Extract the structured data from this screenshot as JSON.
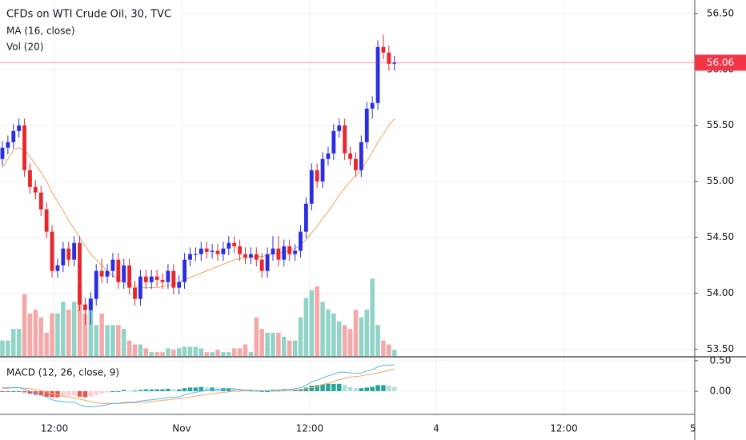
{
  "chart_data": [
    {
      "type": "candlestick",
      "title": "CFDs on WTI Crude Oil, 30, TVC",
      "categories": [
        null,
        null,
        null,
        null,
        null,
        null,
        null,
        null,
        null,
        null,
        null,
        null,
        null,
        null,
        null,
        null,
        null,
        null,
        null,
        null,
        null,
        null,
        null,
        null,
        null,
        null,
        null,
        null,
        null,
        null,
        null,
        null,
        null,
        null,
        null,
        null,
        null,
        null,
        null,
        null,
        null,
        null,
        null,
        null,
        null,
        null,
        null,
        null,
        null,
        null,
        null,
        null,
        null,
        null,
        null,
        null,
        null,
        null,
        null,
        null,
        null,
        null,
        null,
        null,
        null,
        null,
        null,
        null,
        null,
        null,
        null,
        null
      ],
      "open": [
        55.2,
        55.3,
        55.35,
        55.45,
        55.5,
        55.1,
        54.95,
        54.9,
        54.75,
        54.55,
        54.2,
        54.25,
        54.4,
        54.3,
        54.45,
        53.9,
        53.85,
        53.95,
        54.2,
        54.15,
        54.2,
        54.3,
        54.1,
        54.25,
        54.05,
        53.95,
        54.15,
        54.1,
        54.15,
        54.12,
        54.1,
        54.2,
        54.05,
        54.1,
        54.3,
        54.35,
        54.35,
        54.4,
        54.37,
        54.38,
        54.35,
        54.4,
        54.45,
        54.42,
        54.35,
        54.32,
        54.35,
        54.3,
        54.2,
        54.35,
        54.4,
        54.3,
        54.42,
        54.35,
        54.38,
        54.55,
        54.8,
        55.1,
        55.0,
        55.2,
        55.25,
        55.45,
        55.5,
        55.25,
        55.2,
        55.1,
        55.35,
        55.65,
        55.7,
        56.2,
        56.15,
        56.05
      ],
      "high": [
        55.36,
        55.41,
        55.51,
        55.56,
        55.56,
        55.16,
        55.01,
        54.96,
        54.81,
        54.61,
        54.31,
        54.46,
        54.46,
        54.51,
        54.51,
        53.96,
        54.01,
        54.26,
        54.31,
        54.26,
        54.36,
        54.36,
        54.31,
        54.31,
        54.11,
        54.21,
        54.21,
        54.21,
        54.21,
        54.18,
        54.26,
        54.26,
        54.16,
        54.36,
        54.41,
        54.41,
        54.46,
        54.46,
        54.44,
        54.44,
        54.46,
        54.51,
        54.51,
        54.48,
        54.41,
        54.41,
        54.41,
        54.36,
        54.41,
        54.51,
        54.51,
        54.48,
        54.48,
        54.44,
        54.61,
        54.86,
        55.16,
        55.16,
        55.26,
        55.31,
        55.51,
        55.56,
        55.56,
        55.31,
        55.26,
        55.41,
        55.71,
        55.76,
        56.26,
        56.31,
        56.21,
        56.12
      ],
      "low": [
        55.14,
        55.24,
        55.29,
        55.39,
        55.04,
        54.89,
        54.84,
        54.69,
        54.49,
        54.14,
        54.14,
        54.19,
        54.24,
        54.24,
        53.84,
        53.72,
        53.72,
        53.89,
        54.09,
        54.09,
        54.14,
        54.04,
        54.04,
        53.99,
        53.89,
        53.89,
        54.04,
        54.04,
        54.06,
        54.04,
        54.04,
        53.99,
        53.99,
        54.04,
        54.24,
        54.29,
        54.29,
        54.31,
        54.31,
        54.29,
        54.29,
        54.34,
        54.36,
        54.29,
        54.26,
        54.26,
        54.24,
        54.14,
        54.14,
        54.29,
        54.24,
        54.24,
        54.29,
        54.29,
        54.32,
        54.49,
        54.74,
        54.94,
        54.94,
        55.14,
        55.19,
        55.39,
        55.19,
        55.14,
        55.04,
        55.04,
        55.29,
        55.56,
        55.64,
        56.09,
        55.99,
        55.99
      ],
      "close": [
        55.3,
        55.35,
        55.45,
        55.5,
        55.1,
        54.95,
        54.9,
        54.75,
        54.55,
        54.2,
        54.25,
        54.4,
        54.3,
        54.45,
        53.9,
        53.85,
        53.95,
        54.2,
        54.15,
        54.2,
        54.3,
        54.1,
        54.25,
        54.05,
        53.95,
        54.15,
        54.1,
        54.15,
        54.12,
        54.1,
        54.2,
        54.05,
        54.1,
        54.3,
        54.35,
        54.35,
        54.4,
        54.37,
        54.38,
        54.35,
        54.4,
        54.45,
        54.42,
        54.35,
        54.32,
        54.35,
        54.3,
        54.2,
        54.35,
        54.4,
        54.3,
        54.42,
        54.35,
        54.38,
        54.55,
        54.8,
        55.1,
        55.0,
        55.2,
        55.25,
        55.45,
        55.5,
        55.25,
        55.2,
        55.1,
        55.35,
        55.65,
        55.7,
        56.2,
        56.15,
        56.05,
        56.06
      ],
      "up_color": "#2a2ee0",
      "down_color": "#e8262b",
      "series": [
        {
          "name": "MA (16, close)",
          "color": "#f4a261",
          "values": [
            55.12,
            55.2,
            55.28,
            55.3,
            55.28,
            55.22,
            55.15,
            55.08,
            55.0,
            54.9,
            54.82,
            54.74,
            54.65,
            54.58,
            54.5,
            54.42,
            54.35,
            54.3,
            54.25,
            54.2,
            54.16,
            54.12,
            54.1,
            54.08,
            54.06,
            54.05,
            54.05,
            54.05,
            54.05,
            54.06,
            54.07,
            54.08,
            54.1,
            54.12,
            54.14,
            54.16,
            54.18,
            54.2,
            54.22,
            54.24,
            54.26,
            54.28,
            54.3,
            54.31,
            54.32,
            54.32,
            54.33,
            54.33,
            54.34,
            54.35,
            54.36,
            54.37,
            54.38,
            54.4,
            54.43,
            54.48,
            54.54,
            54.6,
            54.67,
            54.73,
            54.8,
            54.88,
            54.94,
            55.0,
            55.05,
            55.1,
            55.18,
            55.26,
            55.35,
            55.42,
            55.5,
            55.56
          ]
        }
      ],
      "volume": {
        "name": "Vol (20)",
        "up_color": "#92d3c8",
        "down_color": "#f5a8a8",
        "ylim": [
          0,
          460
        ],
        "values": [
          20,
          20,
          35,
          35,
          80,
          55,
          60,
          50,
          30,
          55,
          55,
          70,
          60,
          70,
          90,
          55,
          75,
          40,
          55,
          40,
          40,
          40,
          35,
          20,
          15,
          15,
          10,
          5,
          5,
          5,
          10,
          8,
          10,
          12,
          12,
          12,
          10,
          5,
          5,
          8,
          5,
          5,
          10,
          10,
          15,
          5,
          50,
          35,
          30,
          30,
          30,
          25,
          20,
          20,
          50,
          75,
          85,
          90,
          70,
          60,
          55,
          45,
          40,
          35,
          60,
          50,
          60,
          100,
          40,
          20,
          15,
          8
        ]
      },
      "last_value": 56.06,
      "last_color": "#f23645",
      "ylim": [
        53.44,
        56.62
      ],
      "yticks": [
        {
          "value": 56.5,
          "label": "56.50"
        },
        {
          "value": 56.0,
          "label": "56.00"
        },
        {
          "value": 55.5,
          "label": "55.50"
        },
        {
          "value": 55.0,
          "label": "55.00"
        },
        {
          "value": 54.5,
          "label": "54.50"
        },
        {
          "value": 54.0,
          "label": "54.00"
        },
        {
          "value": 53.5,
          "label": "53.50"
        }
      ],
      "xlim": [
        -0.43,
        125.4
      ],
      "xticks": [
        {
          "value": 9.43,
          "label": "12:00"
        },
        {
          "value": 32.47,
          "label": "Nov"
        },
        {
          "value": 55.66,
          "label": "12:00"
        },
        {
          "value": 78.56,
          "label": "4"
        },
        {
          "value": 101.7,
          "label": "12:00"
        },
        {
          "value": 125.08,
          "label": "5"
        }
      ],
      "grid": true
    },
    {
      "type": "macd",
      "title": "MACD (12, 26, close, 9)",
      "macd": {
        "color": "#5ab4ee",
        "values": [
          0.05,
          0.05,
          0.06,
          0.06,
          0.03,
          0.0,
          -0.03,
          -0.06,
          -0.1,
          -0.14,
          -0.16,
          -0.17,
          -0.18,
          -0.18,
          -0.22,
          -0.25,
          -0.26,
          -0.25,
          -0.24,
          -0.22,
          -0.2,
          -0.2,
          -0.18,
          -0.18,
          -0.18,
          -0.16,
          -0.15,
          -0.14,
          -0.13,
          -0.12,
          -0.1,
          -0.1,
          -0.09,
          -0.06,
          -0.04,
          -0.02,
          0.0,
          0.01,
          0.02,
          0.02,
          0.03,
          0.04,
          0.04,
          0.03,
          0.02,
          0.02,
          0.01,
          0.0,
          0.01,
          0.02,
          0.02,
          0.03,
          0.03,
          0.04,
          0.06,
          0.1,
          0.15,
          0.18,
          0.22,
          0.25,
          0.28,
          0.31,
          0.31,
          0.3,
          0.29,
          0.3,
          0.33,
          0.35,
          0.4,
          0.42,
          0.43,
          0.43
        ]
      },
      "signal": {
        "color": "#f4a261",
        "values": [
          0.06,
          0.06,
          0.06,
          0.06,
          0.05,
          0.04,
          0.03,
          0.01,
          -0.01,
          -0.04,
          -0.06,
          -0.08,
          -0.1,
          -0.11,
          -0.13,
          -0.15,
          -0.17,
          -0.19,
          -0.2,
          -0.2,
          -0.2,
          -0.2,
          -0.2,
          -0.19,
          -0.19,
          -0.18,
          -0.18,
          -0.17,
          -0.16,
          -0.15,
          -0.14,
          -0.13,
          -0.12,
          -0.11,
          -0.1,
          -0.08,
          -0.07,
          -0.05,
          -0.04,
          -0.03,
          -0.02,
          -0.01,
          0.0,
          0.0,
          0.01,
          0.01,
          0.01,
          0.01,
          0.01,
          0.01,
          0.01,
          0.01,
          0.02,
          0.02,
          0.03,
          0.04,
          0.06,
          0.08,
          0.11,
          0.13,
          0.16,
          0.19,
          0.21,
          0.23,
          0.24,
          0.25,
          0.27,
          0.28,
          0.3,
          0.32,
          0.34,
          0.36
        ]
      },
      "histogram": {
        "colors": [
          "#26a69a",
          "#b2dfdb",
          "#ef5350",
          "#ffcdd2"
        ],
        "values": [
          -0.01,
          -0.01,
          0,
          0,
          -0.02,
          -0.04,
          -0.06,
          -0.07,
          -0.09,
          -0.1,
          -0.1,
          -0.09,
          -0.08,
          -0.07,
          -0.09,
          -0.1,
          -0.09,
          -0.06,
          -0.04,
          -0.02,
          0,
          0,
          0.02,
          0.01,
          0.01,
          0.02,
          0.03,
          0.03,
          0.03,
          0.03,
          0.04,
          0.03,
          0.03,
          0.05,
          0.06,
          0.06,
          0.07,
          0.06,
          0.06,
          0.05,
          0.05,
          0.05,
          0.04,
          0.03,
          0.01,
          0.01,
          0,
          -0.01,
          0,
          0.01,
          0.01,
          0.02,
          0.01,
          0.02,
          0.03,
          0.06,
          0.09,
          0.1,
          0.11,
          0.12,
          0.12,
          0.12,
          0.1,
          0.07,
          0.05,
          0.05,
          0.06,
          0.07,
          0.1,
          0.1,
          0.09,
          0.07
        ]
      },
      "ylim": [
        -0.38,
        0.55
      ],
      "yticks": [
        {
          "value": 0.5,
          "label": "0.50"
        },
        {
          "value": 0.0,
          "label": "0.00"
        }
      ],
      "grid": true
    }
  ]
}
